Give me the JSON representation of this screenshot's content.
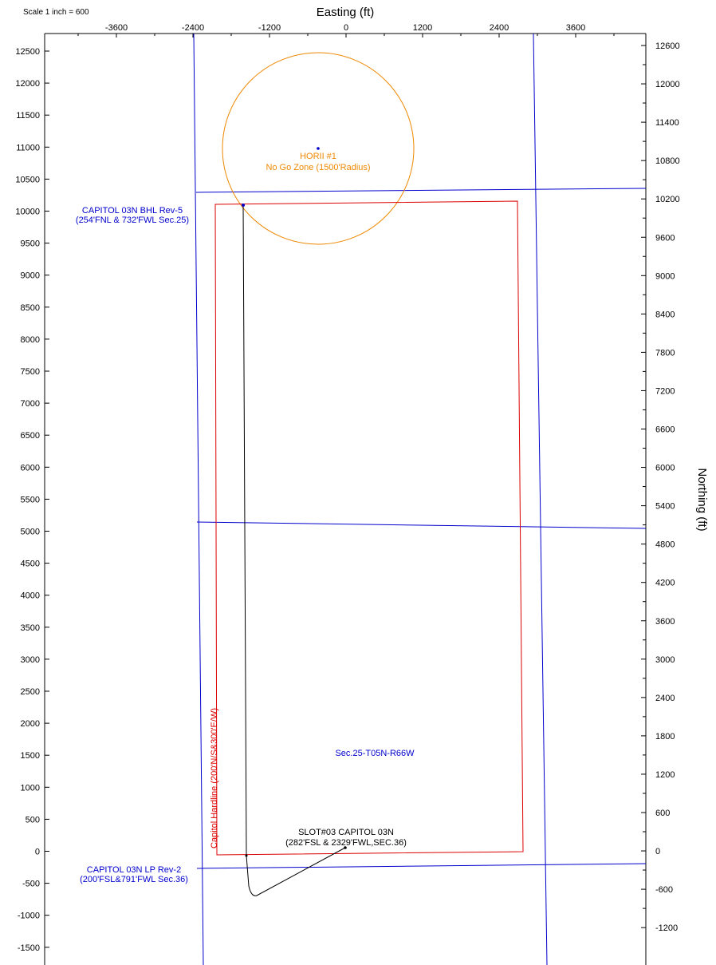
{
  "scale_label": "Scale 1 inch = 600",
  "axes": {
    "x_title": "Easting (ft)",
    "y_title": "Northing (ft)",
    "left_ticks": [
      "12500",
      "12000",
      "11500",
      "11000",
      "10500",
      "10000",
      "9500",
      "9000",
      "8500",
      "8000",
      "7500",
      "7000",
      "6500",
      "6000",
      "5500",
      "5000",
      "4500",
      "4000",
      "3500",
      "3000",
      "2500",
      "2000",
      "1500",
      "1000",
      "500",
      "0",
      "-500",
      "-1000",
      "-1500"
    ],
    "right_ticks": [
      "12600",
      "12000",
      "11400",
      "10800",
      "10200",
      "9600",
      "9000",
      "8400",
      "7800",
      "7200",
      "6600",
      "6000",
      "5400",
      "4800",
      "4200",
      "3600",
      "3000",
      "2400",
      "1800",
      "1200",
      "600",
      "0",
      "-600",
      "-1200"
    ],
    "top_ticks": [
      "-3600",
      "-2400",
      "-1200",
      "0",
      "1200",
      "2400",
      "3600"
    ]
  },
  "labels": {
    "horii_name": "HORII #1",
    "horii_zone": "No Go Zone (1500'Radius)",
    "bhl_line1": "CAPITOL 03N BHL Rev-5",
    "bhl_line2": "(254'FNL & 732'FWL Sec.25)",
    "lp_line1": "CAPITOL 03N LP Rev-2",
    "lp_line2": "(200'FSL&791'FWL Sec.36)",
    "slot_line1": "SLOT#03 CAPITOL 03N",
    "slot_line2": "(282'FSL & 2329'FWL,SEC.36)",
    "section": "Sec.25-T05N-R66W",
    "hardline": "Capitol Hardline (200'N/S&300'E/W)"
  },
  "colors": {
    "section_lines": "#0000cc",
    "hardline": "#dd0000",
    "no_go_zone": "#ee8800",
    "wellpath": "#000000",
    "blue_text": "#0000cc"
  }
}
